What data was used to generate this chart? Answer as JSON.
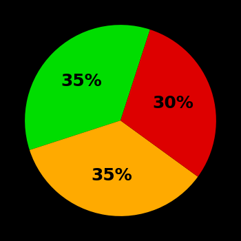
{
  "slices": [
    35,
    35,
    30
  ],
  "colors": [
    "#00dd00",
    "#ffaa00",
    "#dd0000"
  ],
  "labels": [
    "35%",
    "35%",
    "30%"
  ],
  "background_color": "#000000",
  "label_fontsize": 18,
  "label_color": "#000000",
  "startangle": 72,
  "figsize": [
    3.5,
    3.5
  ],
  "dpi": 100
}
